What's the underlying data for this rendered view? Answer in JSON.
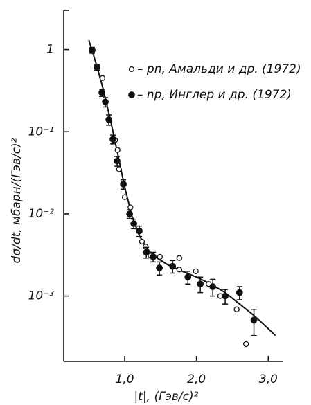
{
  "chart_data": {
    "type": "scatter",
    "xlabel": "|t|, (Гэв/с)²",
    "ylabel": "dσ/dt, мбарн/(Гэв/с)²",
    "xlim": [
      0.15,
      3.2
    ],
    "ylim": [
      0.00016,
      3
    ],
    "log_y": true,
    "xticks": [
      {
        "value": 1,
        "label": "1,0"
      },
      {
        "value": 2,
        "label": "2,0"
      },
      {
        "value": 3,
        "label": "3,0"
      }
    ],
    "yticks": [
      1,
      {
        "value": 0.1,
        "label": "10⁻¹"
      },
      {
        "value": 0.01,
        "label": "10⁻²"
      },
      {
        "value": 0.001,
        "label": "10⁻³"
      }
    ],
    "legend": "upper right",
    "series": [
      {
        "name": "– pn, Амальди и др. (1972)",
        "color": "#111",
        "marker": "open",
        "x": [
          0.69,
          0.865,
          0.9,
          0.92,
          1.0,
          1.08,
          1.24,
          1.29,
          1.36,
          1.49,
          1.76,
          1.76,
          1.99,
          2.17,
          2.33,
          2.56,
          2.69
        ],
        "values": [
          0.45,
          0.079,
          0.06,
          0.035,
          0.016,
          0.012,
          0.0046,
          0.004,
          0.0031,
          0.003,
          0.0029,
          0.0021,
          0.002,
          0.0014,
          0.001,
          0.00069,
          0.00026
        ]
      },
      {
        "name": "– np, Инглер и др. (1972)",
        "color": "#111",
        "marker": "filled",
        "x": [
          0.546,
          0.614,
          0.681,
          0.73,
          0.778,
          0.836,
          0.894,
          0.981,
          1.068,
          1.126,
          1.203,
          1.3,
          1.396,
          1.483,
          1.667,
          1.88,
          2.053,
          2.227,
          2.4,
          2.6,
          2.8
        ],
        "values": [
          0.98,
          0.61,
          0.3,
          0.23,
          0.14,
          0.081,
          0.044,
          0.023,
          0.01,
          0.0076,
          0.0062,
          0.0034,
          0.003,
          0.0022,
          0.0023,
          0.0017,
          0.0014,
          0.0013,
          0.001,
          0.0011,
          0.00051
        ],
        "errors": [
          0.08,
          0.05,
          0.03,
          0.03,
          0.02,
          0.01,
          0.006,
          0.003,
          0.0012,
          0.001,
          0.0009,
          0.0005,
          0.0004,
          0.0004,
          0.0004,
          0.0003,
          0.0003,
          0.0003,
          0.0002,
          0.0002,
          0.00018
        ]
      }
    ],
    "curve": {
      "color": "#111",
      "x": [
        0.5,
        0.6,
        0.7,
        0.8,
        0.9,
        1.0,
        1.1,
        1.2,
        1.3,
        1.4,
        1.6,
        1.8,
        2.0,
        2.2,
        2.4,
        2.6,
        2.8,
        3.0,
        3.1
      ],
      "values": [
        1.3,
        0.68,
        0.33,
        0.14,
        0.055,
        0.021,
        0.0095,
        0.0055,
        0.0039,
        0.0031,
        0.0024,
        0.002,
        0.0017,
        0.0014,
        0.0011,
        0.0008,
        0.00058,
        0.0004,
        0.00033
      ]
    }
  }
}
